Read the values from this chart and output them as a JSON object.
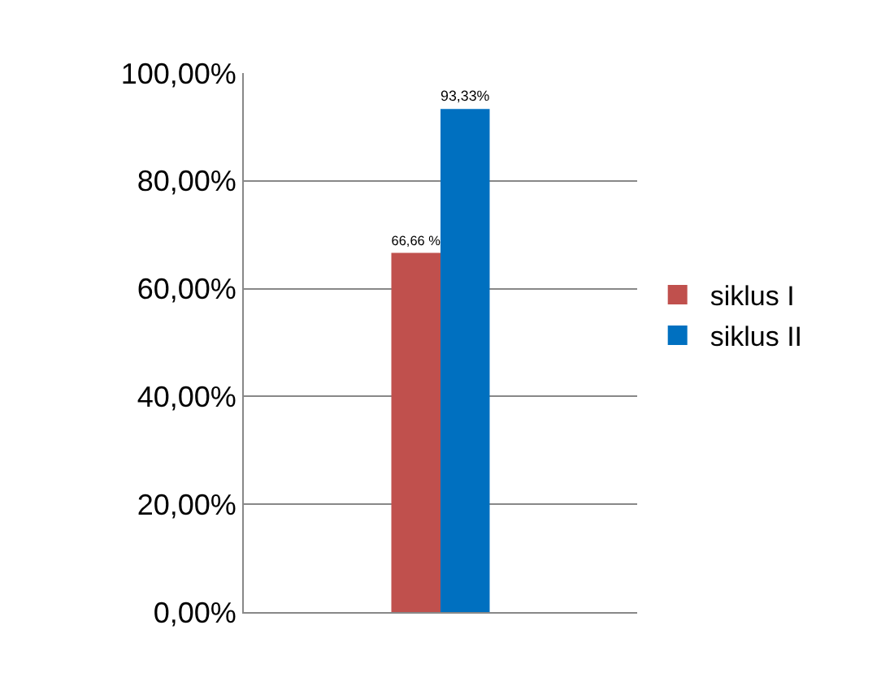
{
  "chart_data": {
    "type": "bar",
    "categories": [
      null
    ],
    "series": [
      {
        "name": "siklus I",
        "color": "#c0504d",
        "values": [
          66.66
        ],
        "value_labels": [
          "66,66 %"
        ]
      },
      {
        "name": "siklus II",
        "color": "#0070c0",
        "values": [
          93.33
        ],
        "value_labels": [
          "93,33%"
        ]
      }
    ],
    "ylim": [
      0,
      100
    ],
    "yticks": [
      {
        "value": 0,
        "label": "0,00%"
      },
      {
        "value": 20,
        "label": "20,00%"
      },
      {
        "value": 40,
        "label": "40,00%"
      },
      {
        "value": 60,
        "label": "60,00%"
      },
      {
        "value": 80,
        "label": "80,00%"
      },
      {
        "value": 100,
        "label": "100,00%"
      }
    ],
    "grid": "y",
    "legend": "right",
    "tick_labels": "y"
  }
}
